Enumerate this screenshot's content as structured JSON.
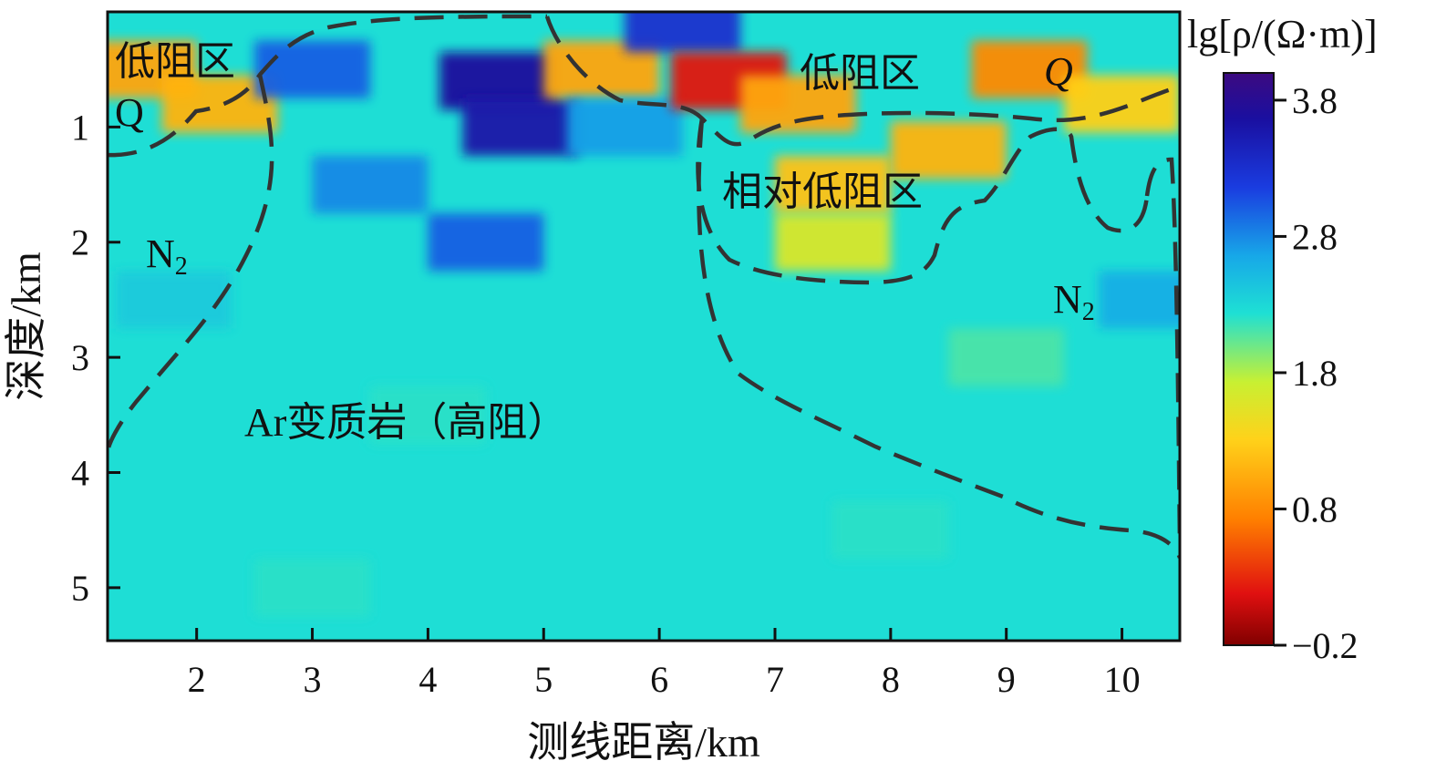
{
  "chart_data": {
    "type": "heatmap",
    "title": "",
    "xlabel": "测线距离/km",
    "ylabel": "深度/km",
    "xlim": [
      1.23,
      10.5
    ],
    "ylim": [
      5.46,
      0.0
    ],
    "x_ticks": [
      "2",
      "3",
      "4",
      "5",
      "6",
      "7",
      "8",
      "9",
      "10"
    ],
    "y_ticks": [
      "1",
      "2",
      "3",
      "4",
      "5"
    ],
    "colorbar": {
      "label": "lg[ρ/(Ω·m)]",
      "range": [
        -0.2,
        4.0
      ],
      "ticks": [
        "3.8",
        "2.8",
        "1.8",
        "0.8",
        "−0.2"
      ],
      "colormap": "jet_reversed",
      "colors": [
        "#800000",
        "#e01010",
        "#ff7f00",
        "#ffd21a",
        "#c8f032",
        "#1ee0d4",
        "#17a8e8",
        "#1a3ce0",
        "#1a0fa0",
        "#3c0a80"
      ]
    },
    "grid": false,
    "annotations": [
      "低阻区",
      "Q",
      "低阻区",
      "Q",
      "相对低阻区",
      "N2",
      "N2",
      "Ar变质岩（高阻）"
    ],
    "resistivity_samples": [
      {
        "x": 1.5,
        "y": 0.5,
        "lg_rho": 1.0
      },
      {
        "x": 2.2,
        "y": 0.8,
        "lg_rho": 1.1
      },
      {
        "x": 1.8,
        "y": 2.5,
        "lg_rho": 2.4
      },
      {
        "x": 3.0,
        "y": 0.5,
        "lg_rho": 3.0
      },
      {
        "x": 3.5,
        "y": 1.5,
        "lg_rho": 2.8
      },
      {
        "x": 4.6,
        "y": 0.6,
        "lg_rho": 3.7
      },
      {
        "x": 4.8,
        "y": 1.0,
        "lg_rho": 3.6
      },
      {
        "x": 4.5,
        "y": 2.0,
        "lg_rho": 3.0
      },
      {
        "x": 4.0,
        "y": 3.5,
        "lg_rho": 2.2
      },
      {
        "x": 5.5,
        "y": 0.5,
        "lg_rho": 1.0
      },
      {
        "x": 5.7,
        "y": 1.0,
        "lg_rho": 2.7
      },
      {
        "x": 6.2,
        "y": 0.1,
        "lg_rho": 3.3
      },
      {
        "x": 6.6,
        "y": 0.6,
        "lg_rho": 0.2
      },
      {
        "x": 7.2,
        "y": 0.8,
        "lg_rho": 1.0
      },
      {
        "x": 7.5,
        "y": 1.5,
        "lg_rho": 1.2
      },
      {
        "x": 7.5,
        "y": 2.0,
        "lg_rho": 1.6
      },
      {
        "x": 8.5,
        "y": 1.2,
        "lg_rho": 1.1
      },
      {
        "x": 9.2,
        "y": 0.5,
        "lg_rho": 0.8
      },
      {
        "x": 10.0,
        "y": 0.8,
        "lg_rho": 1.3
      },
      {
        "x": 10.3,
        "y": 2.5,
        "lg_rho": 2.6
      },
      {
        "x": 9.0,
        "y": 3.0,
        "lg_rho": 2.1
      },
      {
        "x": 8.0,
        "y": 4.5,
        "lg_rho": 2.2
      },
      {
        "x": 3.0,
        "y": 5.0,
        "lg_rho": 2.2
      }
    ]
  }
}
